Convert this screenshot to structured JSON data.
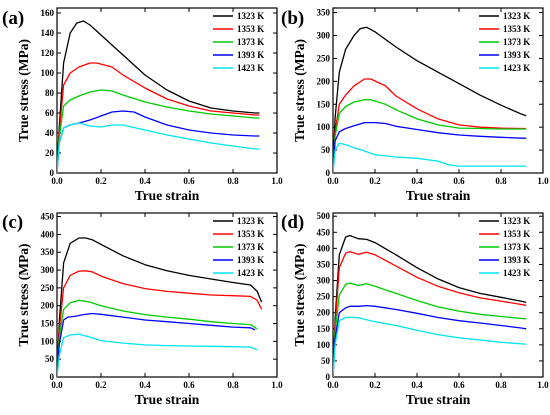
{
  "figure": {
    "panels": [
      "(a)",
      "(b)",
      "(c)",
      "(d)"
    ]
  },
  "chart_data": [
    {
      "type": "line",
      "panel_label": "(a)",
      "xlabel": "True strain",
      "ylabel": "True stress (MPa)",
      "xlim": [
        0,
        1.0
      ],
      "ylim": [
        0,
        165
      ],
      "xticks": [
        0.0,
        0.2,
        0.4,
        0.6,
        0.8,
        1.0
      ],
      "xtick_labels": [
        "0.0",
        "0.2",
        "0.4",
        "0.6",
        "0.8",
        "1.0"
      ],
      "yticks": [
        0,
        20,
        40,
        60,
        80,
        100,
        120,
        140,
        160
      ],
      "ytick_labels": [
        "0",
        "20",
        "40",
        "60",
        "80",
        "100",
        "120",
        "140",
        "160"
      ],
      "legend_position": "top-right",
      "series": [
        {
          "name": "1323 K",
          "color": "#000000",
          "x": [
            0,
            0.01,
            0.03,
            0.06,
            0.09,
            0.12,
            0.15,
            0.2,
            0.3,
            0.4,
            0.5,
            0.6,
            0.7,
            0.8,
            0.9,
            0.92
          ],
          "y": [
            0,
            45,
            110,
            140,
            150,
            152,
            148,
            138,
            118,
            98,
            83,
            72,
            65,
            62,
            60,
            60
          ]
        },
        {
          "name": "1353 K",
          "color": "#ff0000",
          "x": [
            0,
            0.01,
            0.03,
            0.06,
            0.1,
            0.15,
            0.18,
            0.25,
            0.3,
            0.4,
            0.5,
            0.6,
            0.7,
            0.8,
            0.9,
            0.92
          ],
          "y": [
            0,
            40,
            88,
            100,
            106,
            110,
            110,
            106,
            98,
            85,
            74,
            67,
            62,
            60,
            58,
            58
          ]
        },
        {
          "name": "1373 K",
          "color": "#00cc00",
          "x": [
            0,
            0.01,
            0.03,
            0.06,
            0.1,
            0.15,
            0.2,
            0.25,
            0.3,
            0.4,
            0.5,
            0.6,
            0.7,
            0.8,
            0.9,
            0.92
          ],
          "y": [
            0,
            35,
            67,
            73,
            77,
            81,
            83,
            82,
            78,
            71,
            66,
            62,
            59,
            57,
            55,
            55
          ]
        },
        {
          "name": "1393 K",
          "color": "#0000ff",
          "x": [
            0,
            0.01,
            0.03,
            0.06,
            0.1,
            0.15,
            0.2,
            0.25,
            0.3,
            0.35,
            0.4,
            0.5,
            0.6,
            0.7,
            0.8,
            0.9,
            0.92
          ],
          "y": [
            0,
            30,
            45,
            48,
            50,
            53,
            57,
            61,
            62,
            61,
            56,
            48,
            43,
            40,
            38,
            37,
            37
          ]
        },
        {
          "name": "1423 K",
          "color": "#00e5ee",
          "x": [
            0,
            0.01,
            0.03,
            0.06,
            0.1,
            0.15,
            0.2,
            0.25,
            0.3,
            0.4,
            0.5,
            0.6,
            0.7,
            0.8,
            0.9,
            0.92
          ],
          "y": [
            0,
            30,
            45,
            48,
            50,
            47,
            46,
            48,
            48,
            43,
            38,
            34,
            30,
            27,
            24,
            24
          ]
        }
      ]
    },
    {
      "type": "line",
      "panel_label": "(b)",
      "xlabel": "True strain",
      "ylabel": "True stress (MPa)",
      "xlim": [
        0,
        1.0
      ],
      "ylim": [
        0,
        360
      ],
      "xticks": [
        0.0,
        0.2,
        0.4,
        0.6,
        0.8,
        1.0
      ],
      "xtick_labels": [
        "0.0",
        "0.2",
        "0.4",
        "0.6",
        "0.8",
        "1.0"
      ],
      "yticks": [
        0,
        50,
        100,
        150,
        200,
        250,
        300,
        350
      ],
      "ytick_labels": [
        "0",
        "50",
        "100",
        "150",
        "200",
        "250",
        "300",
        "350"
      ],
      "legend_position": "top-right",
      "series": [
        {
          "name": "1323 K",
          "color": "#000000",
          "x": [
            0,
            0.01,
            0.03,
            0.06,
            0.1,
            0.13,
            0.16,
            0.2,
            0.3,
            0.4,
            0.5,
            0.6,
            0.7,
            0.8,
            0.9,
            0.92
          ],
          "y": [
            0,
            120,
            220,
            270,
            300,
            315,
            318,
            308,
            275,
            245,
            220,
            195,
            170,
            148,
            128,
            125
          ]
        },
        {
          "name": "1353 K",
          "color": "#ff0000",
          "x": [
            0,
            0.01,
            0.03,
            0.06,
            0.1,
            0.15,
            0.18,
            0.25,
            0.3,
            0.4,
            0.5,
            0.6,
            0.7,
            0.8,
            0.9,
            0.92
          ],
          "y": [
            0,
            90,
            150,
            170,
            190,
            205,
            205,
            190,
            168,
            140,
            118,
            105,
            100,
            98,
            97,
            97
          ]
        },
        {
          "name": "1373 K",
          "color": "#00cc00",
          "x": [
            0,
            0.01,
            0.03,
            0.06,
            0.1,
            0.15,
            0.18,
            0.25,
            0.3,
            0.4,
            0.5,
            0.6,
            0.7,
            0.8,
            0.9,
            0.92
          ],
          "y": [
            0,
            80,
            130,
            145,
            155,
            160,
            160,
            150,
            138,
            118,
            105,
            98,
            97,
            96,
            96,
            96
          ]
        },
        {
          "name": "1393 K",
          "color": "#0000ff",
          "x": [
            0,
            0.01,
            0.03,
            0.06,
            0.1,
            0.15,
            0.2,
            0.25,
            0.3,
            0.4,
            0.5,
            0.6,
            0.7,
            0.8,
            0.9,
            0.92
          ],
          "y": [
            0,
            70,
            90,
            97,
            103,
            110,
            110,
            108,
            102,
            95,
            88,
            83,
            80,
            78,
            76,
            76
          ]
        },
        {
          "name": "1423 K",
          "color": "#00e5ee",
          "x": [
            0,
            0.01,
            0.03,
            0.06,
            0.1,
            0.15,
            0.2,
            0.3,
            0.4,
            0.5,
            0.55,
            0.6,
            0.7,
            0.8,
            0.9,
            0.92
          ],
          "y": [
            0,
            50,
            65,
            62,
            55,
            48,
            40,
            35,
            32,
            26,
            18,
            15,
            15,
            15,
            15,
            15
          ]
        }
      ]
    },
    {
      "type": "line",
      "panel_label": "(c)",
      "xlabel": "True strain",
      "ylabel": "True stress (MPa)",
      "xlim": [
        0,
        1.0
      ],
      "ylim": [
        0,
        460
      ],
      "xticks": [
        0.0,
        0.2,
        0.4,
        0.6,
        0.8,
        1.0
      ],
      "xtick_labels": [
        "0.0",
        "0.2",
        "0.4",
        "0.6",
        "0.8",
        "1.0"
      ],
      "yticks": [
        0,
        50,
        100,
        150,
        200,
        250,
        300,
        350,
        400,
        450
      ],
      "ytick_labels": [
        "0",
        "50",
        "100",
        "150",
        "200",
        "250",
        "300",
        "350",
        "400",
        "450"
      ],
      "legend_position": "top-right",
      "series": [
        {
          "name": "1323 K",
          "color": "#000000",
          "x": [
            0,
            0.01,
            0.03,
            0.06,
            0.1,
            0.13,
            0.16,
            0.2,
            0.3,
            0.4,
            0.5,
            0.6,
            0.7,
            0.8,
            0.88,
            0.91,
            0.93
          ],
          "y": [
            0,
            150,
            320,
            375,
            390,
            390,
            385,
            372,
            340,
            315,
            298,
            285,
            275,
            265,
            258,
            240,
            210
          ]
        },
        {
          "name": "1353 K",
          "color": "#ff0000",
          "x": [
            0,
            0.01,
            0.03,
            0.06,
            0.1,
            0.13,
            0.16,
            0.2,
            0.3,
            0.4,
            0.5,
            0.6,
            0.7,
            0.8,
            0.88,
            0.91,
            0.93
          ],
          "y": [
            0,
            130,
            250,
            285,
            297,
            298,
            295,
            283,
            262,
            248,
            240,
            235,
            230,
            228,
            226,
            215,
            190
          ]
        },
        {
          "name": "1373 K",
          "color": "#00cc00",
          "x": [
            0,
            0.01,
            0.03,
            0.06,
            0.1,
            0.15,
            0.2,
            0.3,
            0.4,
            0.5,
            0.6,
            0.7,
            0.8,
            0.88,
            0.91
          ],
          "y": [
            0,
            110,
            190,
            208,
            215,
            210,
            200,
            185,
            175,
            168,
            162,
            155,
            150,
            147,
            135
          ]
        },
        {
          "name": "1393 K",
          "color": "#0000ff",
          "x": [
            0,
            0.01,
            0.03,
            0.05,
            0.08,
            0.12,
            0.16,
            0.2,
            0.3,
            0.4,
            0.5,
            0.6,
            0.7,
            0.8,
            0.88,
            0.9
          ],
          "y": [
            0,
            90,
            160,
            168,
            170,
            175,
            178,
            176,
            168,
            160,
            155,
            150,
            145,
            140,
            138,
            132
          ]
        },
        {
          "name": "1423 K",
          "color": "#00e5ee",
          "x": [
            0,
            0.01,
            0.03,
            0.06,
            0.1,
            0.15,
            0.2,
            0.3,
            0.4,
            0.5,
            0.6,
            0.7,
            0.8,
            0.88,
            0.91
          ],
          "y": [
            0,
            60,
            110,
            118,
            120,
            112,
            102,
            95,
            90,
            88,
            87,
            86,
            85,
            84,
            76
          ]
        }
      ]
    },
    {
      "type": "line",
      "panel_label": "(d)",
      "xlabel": "True strain",
      "ylabel": "True stress (MPa)",
      "xlim": [
        0,
        1.0
      ],
      "ylim": [
        0,
        510
      ],
      "xticks": [
        0.0,
        0.2,
        0.4,
        0.6,
        0.8,
        1.0
      ],
      "xtick_labels": [
        "0.0",
        "0.2",
        "0.4",
        "0.6",
        "0.8",
        "1.0"
      ],
      "yticks": [
        0,
        50,
        100,
        150,
        200,
        250,
        300,
        350,
        400,
        450,
        500
      ],
      "ytick_labels": [
        "0",
        "50",
        "100",
        "150",
        "200",
        "250",
        "300",
        "350",
        "400",
        "450",
        "500"
      ],
      "legend_position": "top-right",
      "series": [
        {
          "name": "1323 K",
          "color": "#000000",
          "x": [
            0,
            0.01,
            0.03,
            0.06,
            0.08,
            0.12,
            0.16,
            0.2,
            0.3,
            0.4,
            0.5,
            0.6,
            0.7,
            0.8,
            0.9,
            0.92
          ],
          "y": [
            0,
            180,
            380,
            435,
            440,
            430,
            428,
            418,
            380,
            340,
            305,
            278,
            260,
            248,
            235,
            232
          ]
        },
        {
          "name": "1353 K",
          "color": "#ff0000",
          "x": [
            0,
            0.01,
            0.03,
            0.06,
            0.08,
            0.12,
            0.16,
            0.2,
            0.3,
            0.4,
            0.5,
            0.6,
            0.7,
            0.8,
            0.9,
            0.92
          ],
          "y": [
            0,
            160,
            340,
            385,
            390,
            382,
            388,
            380,
            345,
            310,
            282,
            262,
            246,
            236,
            225,
            223
          ]
        },
        {
          "name": "1373 K",
          "color": "#00cc00",
          "x": [
            0,
            0.01,
            0.03,
            0.06,
            0.08,
            0.12,
            0.16,
            0.2,
            0.3,
            0.4,
            0.5,
            0.6,
            0.7,
            0.8,
            0.9,
            0.92
          ],
          "y": [
            0,
            140,
            255,
            288,
            292,
            285,
            290,
            282,
            260,
            238,
            218,
            205,
            195,
            188,
            182,
            181
          ]
        },
        {
          "name": "1393 K",
          "color": "#0000ff",
          "x": [
            0,
            0.01,
            0.03,
            0.06,
            0.08,
            0.12,
            0.16,
            0.2,
            0.3,
            0.4,
            0.5,
            0.6,
            0.7,
            0.8,
            0.9,
            0.92
          ],
          "y": [
            0,
            120,
            200,
            215,
            220,
            220,
            222,
            220,
            210,
            198,
            185,
            175,
            168,
            160,
            152,
            150
          ]
        },
        {
          "name": "1423 K",
          "color": "#00e5ee",
          "x": [
            0,
            0.01,
            0.03,
            0.06,
            0.08,
            0.12,
            0.16,
            0.2,
            0.3,
            0.4,
            0.5,
            0.6,
            0.7,
            0.8,
            0.9,
            0.92
          ],
          "y": [
            0,
            100,
            175,
            185,
            186,
            184,
            178,
            172,
            160,
            145,
            132,
            122,
            115,
            108,
            103,
            102
          ]
        }
      ]
    }
  ]
}
